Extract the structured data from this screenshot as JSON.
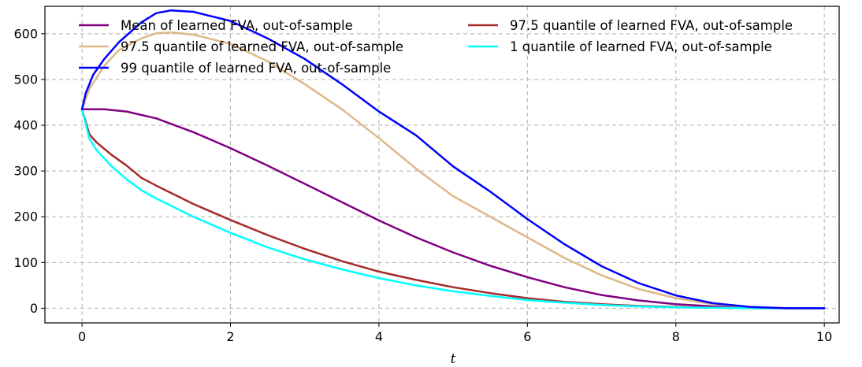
{
  "chart_data": {
    "type": "line",
    "xlabel": "t",
    "ylabel": "",
    "xlim": [
      -0.5,
      10.2
    ],
    "ylim": [
      -32,
      660
    ],
    "xticks": [
      0,
      2,
      4,
      6,
      8,
      10
    ],
    "yticks": [
      0,
      100,
      200,
      300,
      400,
      500,
      600
    ],
    "grid": true,
    "legend_position": "top",
    "series": [
      {
        "name": "Mean of learned FVA, out-of-sample",
        "color": "#800080",
        "x": [
          0,
          0.3,
          0.6,
          1,
          1.5,
          2,
          2.5,
          3,
          3.5,
          4,
          4.5,
          5,
          5.5,
          6,
          6.5,
          7,
          7.5,
          8,
          8.5,
          9,
          9.5,
          10
        ],
        "y": [
          435,
          435,
          430,
          415,
          385,
          350,
          312,
          272,
          232,
          192,
          155,
          122,
          93,
          68,
          46,
          29,
          17,
          9,
          4,
          1,
          0,
          0
        ]
      },
      {
        "name": "97.5 quantile of learned FVA, out-of-sample",
        "color": "#a52a2a",
        "x": [
          0,
          0.1,
          0.2,
          0.4,
          0.6,
          0.8,
          1,
          1.5,
          2,
          2.5,
          3,
          3.5,
          4,
          4.5,
          5,
          5.5,
          6,
          6.5,
          7,
          7.5,
          8,
          8.5,
          9,
          9.5,
          10
        ],
        "y": [
          435,
          380,
          362,
          335,
          312,
          285,
          268,
          228,
          193,
          160,
          130,
          103,
          80,
          62,
          46,
          33,
          22,
          14,
          9,
          5,
          3,
          1,
          0,
          0,
          0
        ]
      },
      {
        "name": "97.5 quantile of learned FVA, out-of-sample",
        "color": "#deb887",
        "x": [
          0,
          0.1,
          0.3,
          0.5,
          0.8,
          1,
          1.2,
          1.5,
          2,
          2.5,
          3,
          3.5,
          4,
          4.5,
          5,
          5.5,
          6,
          6.5,
          7,
          7.5,
          8,
          8.5,
          9,
          9.5,
          10
        ],
        "y": [
          435,
          480,
          530,
          565,
          590,
          601,
          603,
          598,
          578,
          540,
          490,
          435,
          372,
          305,
          245,
          200,
          155,
          110,
          72,
          42,
          22,
          9,
          3,
          0,
          0
        ]
      },
      {
        "name": "1 quantile of learned FVA, out-of-sample",
        "color": "#00ffff",
        "x": [
          0,
          0.1,
          0.2,
          0.4,
          0.6,
          0.8,
          1,
          1.5,
          2,
          2.5,
          3,
          3.5,
          4,
          4.5,
          5,
          5.5,
          6,
          6.5,
          7,
          7.5,
          8,
          8.5,
          9,
          9.5,
          10
        ],
        "y": [
          435,
          370,
          345,
          310,
          282,
          258,
          240,
          200,
          165,
          133,
          107,
          85,
          66,
          50,
          37,
          27,
          18,
          12,
          7,
          4,
          2,
          1,
          0,
          0,
          0
        ]
      },
      {
        "name": "99 quantile of learned FVA, out-of-sample",
        "color": "#0000ff",
        "x": [
          0,
          0.05,
          0.15,
          0.3,
          0.5,
          0.8,
          1,
          1.2,
          1.5,
          2,
          2.5,
          3,
          3.5,
          4,
          4.5,
          5,
          5.5,
          6,
          6.5,
          7,
          7.5,
          8,
          8.5,
          9,
          9.5,
          10
        ],
        "y": [
          435,
          470,
          510,
          545,
          582,
          625,
          645,
          651,
          648,
          628,
          590,
          545,
          490,
          430,
          378,
          310,
          255,
          195,
          140,
          92,
          55,
          28,
          11,
          3,
          0,
          0
        ]
      }
    ]
  }
}
